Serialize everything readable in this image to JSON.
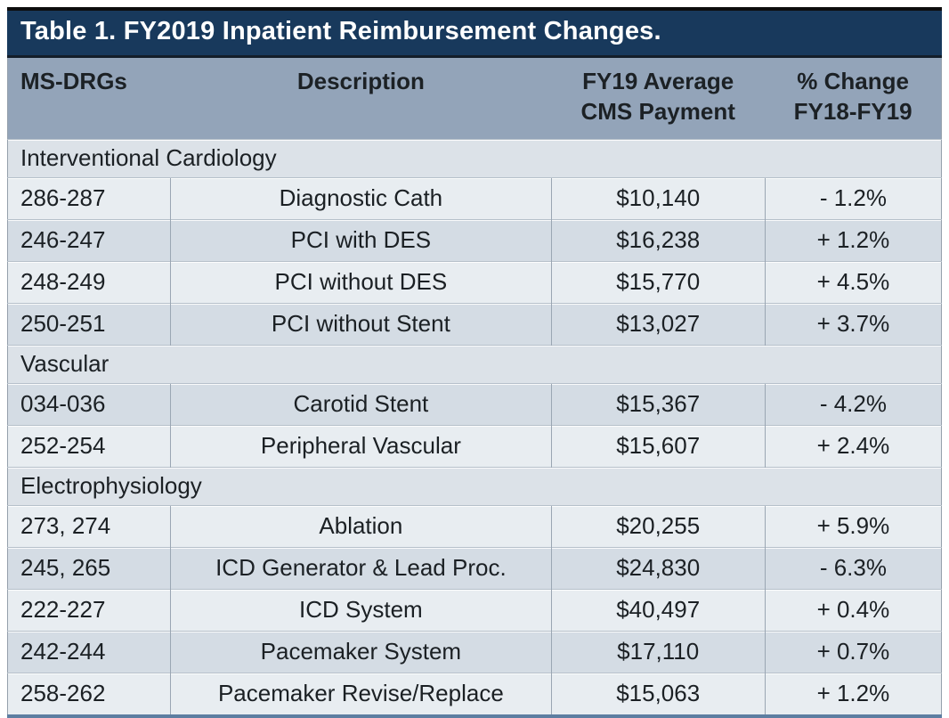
{
  "title": "Table 1. FY2019 Inpatient Reimbursement Changes.",
  "columns": [
    {
      "line1": "MS-DRGs",
      "line2": ""
    },
    {
      "line1": "Description",
      "line2": ""
    },
    {
      "line1": "FY19 Average",
      "line2": "CMS Payment"
    },
    {
      "line1": "% Change",
      "line2": "FY18-FY19"
    }
  ],
  "sections": [
    {
      "name": "Interventional Cardiology",
      "rows": [
        {
          "drg": "286-287",
          "description": "Diagnostic Cath",
          "payment": "$10,140",
          "change": "- 1.2%"
        },
        {
          "drg": "246-247",
          "description": "PCI with DES",
          "payment": "$16,238",
          "change": "+ 1.2%"
        },
        {
          "drg": "248-249",
          "description": "PCI without DES",
          "payment": "$15,770",
          "change": "+ 4.5%"
        },
        {
          "drg": "250-251",
          "description": "PCI without Stent",
          "payment": "$13,027",
          "change": "+ 3.7%"
        }
      ]
    },
    {
      "name": "Vascular",
      "rows": [
        {
          "drg": "034-036",
          "description": "Carotid Stent",
          "payment": "$15,367",
          "change": "- 4.2%"
        },
        {
          "drg": "252-254",
          "description": "Peripheral Vascular",
          "payment": "$15,607",
          "change": "+ 2.4%"
        }
      ]
    },
    {
      "name": "Electrophysiology",
      "rows": [
        {
          "drg": "273, 274",
          "description": "Ablation",
          "payment": "$20,255",
          "change": "+ 5.9%"
        },
        {
          "drg": "245, 265",
          "description": "ICD Generator & Lead Proc.",
          "payment": "$24,830",
          "change": "- 6.3%"
        },
        {
          "drg": "222-227",
          "description": "ICD System",
          "payment": "$40,497",
          "change": "+ 0.4%"
        },
        {
          "drg": "242-244",
          "description": "Pacemaker System",
          "payment": "$17,110",
          "change": "+ 0.7%"
        },
        {
          "drg": "258-262",
          "description": "Pacemaker Revise/Replace",
          "payment": "$15,063",
          "change": "+ 1.2%"
        }
      ]
    }
  ],
  "colors": {
    "title_bg": "#18395c",
    "header_bg": "#93a4b9",
    "section_bg": "#dce2e8",
    "row_light": "#e8edf1",
    "row_dark": "#d4dce4",
    "bottom_border": "#5d7ea1",
    "grid_vertical": "#9aa6b3"
  }
}
